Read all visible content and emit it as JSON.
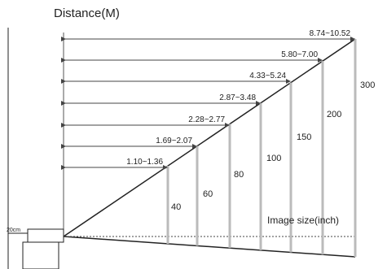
{
  "title": "Distance(M)",
  "offset_label": "20cm",
  "size_axis_label": "Image size(inch)",
  "colors": {
    "line": "#222222",
    "screen": "#bbbbbb",
    "arrow": "#444444",
    "projector": "#ffffff"
  },
  "entries": [
    {
      "size": "40",
      "distance": "1.10~1.36"
    },
    {
      "size": "60",
      "distance": "1.69~2.07"
    },
    {
      "size": "80",
      "distance": "2.28~2.77"
    },
    {
      "size": "100",
      "distance": "2.87~3.48"
    },
    {
      "size": "150",
      "distance": "4.33~5.24"
    },
    {
      "size": "200",
      "distance": "5.80~7.00"
    },
    {
      "size": "300",
      "distance": "8.74~10.52"
    }
  ]
}
